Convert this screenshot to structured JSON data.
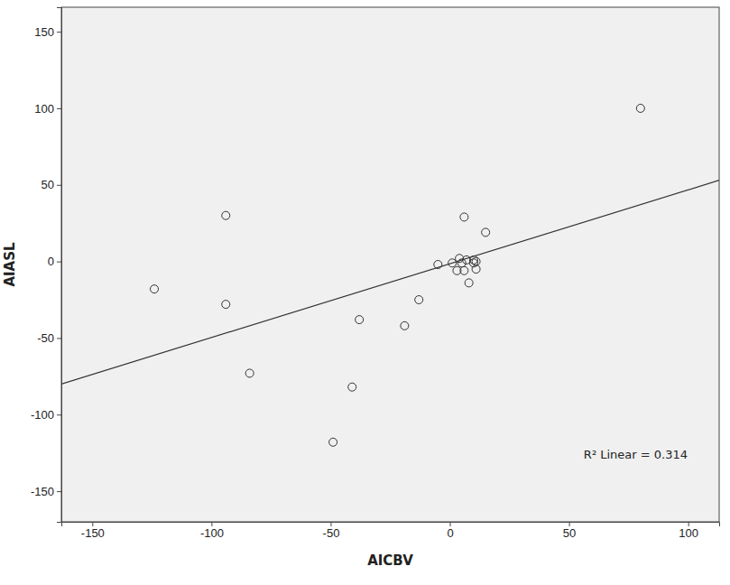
{
  "chart_data": {
    "type": "scatter",
    "x_label": "AICBV",
    "y_label": "AIASL",
    "x": [
      80,
      -94,
      -124,
      -94,
      -84,
      -38,
      -19,
      -13,
      -41,
      -49,
      -5,
      6,
      15,
      1,
      3,
      4,
      5,
      6,
      7,
      8,
      10,
      11,
      11,
      10
    ],
    "y": [
      100,
      30,
      -18,
      -28,
      -73,
      -38,
      -42,
      -25,
      -82,
      -118,
      -2,
      29,
      19,
      -1,
      -6,
      2,
      -1,
      -6,
      1,
      -14,
      -1,
      -5,
      0,
      1
    ],
    "trendline": {
      "x": [
        -163,
        113
      ],
      "y": [
        -80,
        53
      ]
    },
    "annotations": [
      "R² Linear = 0.314"
    ],
    "color": "#333333",
    "marker": "circle-open",
    "grid": false,
    "xlim": [
      -163,
      113
    ],
    "ylim": [
      -170,
      166
    ],
    "xticks": [
      -150,
      -100,
      -50,
      0,
      50,
      100
    ],
    "yticks": [
      -150,
      -100,
      -50,
      0,
      50,
      100,
      150
    ]
  }
}
